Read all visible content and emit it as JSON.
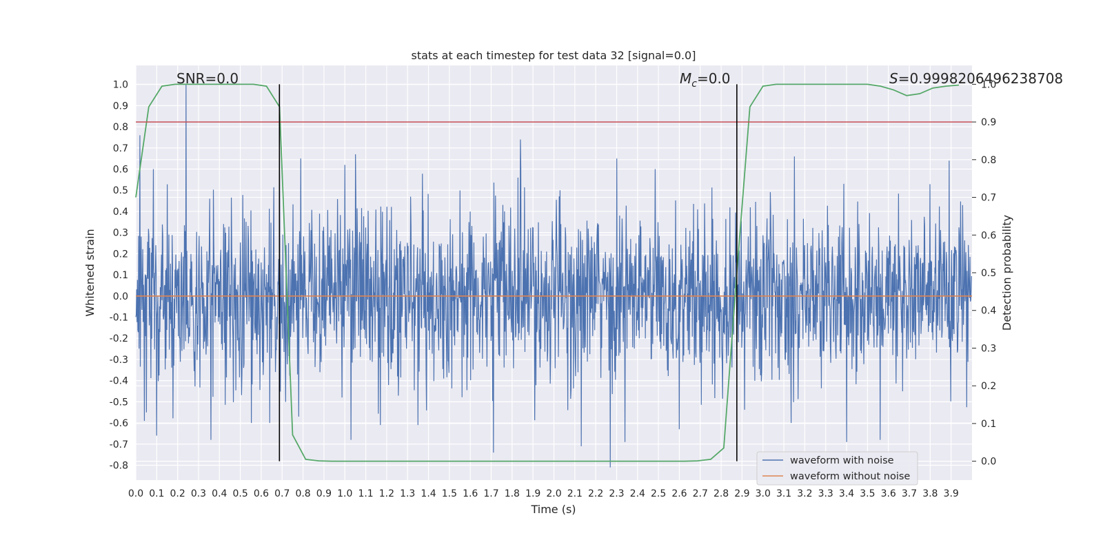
{
  "chart_data": {
    "type": "line",
    "title": "stats at each timestep for test data 32 [signal=0.0]",
    "xlabel": "Time (s)",
    "ylabel": "Whitened strain",
    "y2label": "Detection probability",
    "xlim": [
      0.0,
      4.0
    ],
    "ylim": [
      -0.87,
      1.09
    ],
    "y2lim": [
      -0.05,
      1.05
    ],
    "x_ticks": [
      "0.0",
      "0.1",
      "0.2",
      "0.3",
      "0.4",
      "0.5",
      "0.6",
      "0.7",
      "0.8",
      "0.9",
      "1.0",
      "1.1",
      "1.2",
      "1.3",
      "1.4",
      "1.5",
      "1.6",
      "1.7",
      "1.8",
      "1.9",
      "2.0",
      "2.1",
      "2.2",
      "2.3",
      "2.4",
      "2.5",
      "2.6",
      "2.7",
      "2.8",
      "2.9",
      "3.0",
      "3.1",
      "3.2",
      "3.3",
      "3.4",
      "3.5",
      "3.6",
      "3.7",
      "3.8",
      "3.9"
    ],
    "y_ticks": [
      "-0.8",
      "-0.7",
      "-0.6",
      "-0.5",
      "-0.4",
      "-0.3",
      "-0.2",
      "-0.1",
      "0.0",
      "0.1",
      "0.2",
      "0.3",
      "0.4",
      "0.5",
      "0.6",
      "0.7",
      "0.8",
      "0.9",
      "1.0"
    ],
    "y2_ticks": [
      "0.0",
      "0.1",
      "0.2",
      "0.3",
      "0.4",
      "0.5",
      "0.6",
      "0.7",
      "0.8",
      "0.9",
      "1.0"
    ],
    "grid": true,
    "legend_position": "bottom-right",
    "annotations": {
      "snr": "SNR=0.0",
      "mc_symbol": "M",
      "mc_sub": "c",
      "mc_value": "=0.0",
      "s_symbol": "S",
      "s_value": "=0.9998206496238708"
    },
    "threshold": {
      "axis": "y2",
      "value": 0.9,
      "color": "#c44e52"
    },
    "vertical_markers": [
      0.687,
      2.875
    ],
    "series": [
      {
        "name": "waveform with noise",
        "axis": "y",
        "color": "#4c72b0",
        "kind": "dense-noise",
        "n_samples": 2048,
        "typical_amplitude": 0.2,
        "peaks": [
          {
            "x": 0.02,
            "y": 0.76
          },
          {
            "x": 0.05,
            "y": -0.55
          },
          {
            "x": 0.1,
            "y": -0.66
          },
          {
            "x": 0.24,
            "y": 1.0
          },
          {
            "x": 0.36,
            "y": -0.68
          },
          {
            "x": 0.64,
            "y": -0.6
          },
          {
            "x": 0.78,
            "y": -0.57
          },
          {
            "x": 0.79,
            "y": 0.65
          },
          {
            "x": 1.0,
            "y": 0.62
          },
          {
            "x": 1.03,
            "y": -0.68
          },
          {
            "x": 1.05,
            "y": 0.67
          },
          {
            "x": 1.17,
            "y": -0.61
          },
          {
            "x": 1.35,
            "y": -0.61
          },
          {
            "x": 1.71,
            "y": -0.74
          },
          {
            "x": 1.84,
            "y": 0.74
          },
          {
            "x": 2.13,
            "y": -0.71
          },
          {
            "x": 2.27,
            "y": -0.81
          },
          {
            "x": 2.3,
            "y": 0.65
          },
          {
            "x": 2.34,
            "y": -0.69
          },
          {
            "x": 2.6,
            "y": -0.63
          },
          {
            "x": 3.15,
            "y": 0.66
          },
          {
            "x": 3.4,
            "y": -0.69
          },
          {
            "x": 3.56,
            "y": -0.68
          },
          {
            "x": 3.89,
            "y": 0.64
          }
        ]
      },
      {
        "name": "waveform without noise",
        "axis": "y",
        "color": "#dd8452",
        "x": [
          0.0,
          4.0
        ],
        "values": [
          0.0,
          0.0
        ]
      },
      {
        "name": "detection probability",
        "axis": "y2",
        "color": "#55a868",
        "x": [
          0.0,
          0.062,
          0.125,
          0.1875,
          0.25,
          0.3125,
          0.375,
          0.4375,
          0.5,
          0.5625,
          0.625,
          0.6875,
          0.75,
          0.8125,
          0.875,
          0.9375,
          1.0,
          1.25,
          1.5,
          1.75,
          2.0,
          2.25,
          2.5,
          2.625,
          2.6875,
          2.75,
          2.8125,
          2.875,
          2.9375,
          3.0,
          3.0625,
          3.125,
          3.25,
          3.375,
          3.5,
          3.5625,
          3.625,
          3.6875,
          3.75,
          3.8125,
          3.875,
          3.9375
        ],
        "values": [
          0.7,
          0.94,
          0.995,
          1.0,
          1.0,
          1.0,
          1.0,
          1.0,
          1.0,
          1.0,
          0.995,
          0.94,
          0.07,
          0.005,
          0.001,
          0.0,
          0.0,
          0.0,
          0.0,
          0.0,
          0.0,
          0.0,
          0.0,
          0.0,
          0.001,
          0.005,
          0.035,
          0.5,
          0.94,
          0.995,
          1.0,
          1.0,
          1.0,
          1.0,
          1.0,
          0.995,
          0.985,
          0.97,
          0.975,
          0.99,
          0.995,
          0.998
        ]
      }
    ]
  }
}
